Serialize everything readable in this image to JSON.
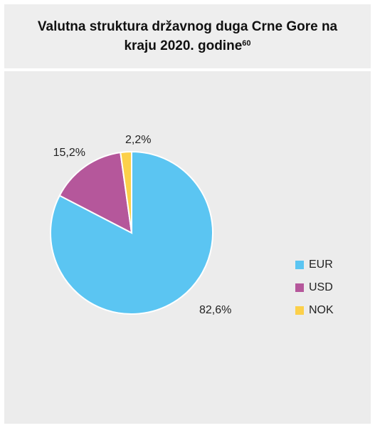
{
  "chart_data": {
    "type": "pie",
    "title": "Valutna struktura državnog duga Crne Gore na kraju 2020. godine",
    "title_note": "60",
    "categories": [
      "EUR",
      "USD",
      "NOK"
    ],
    "values": [
      82.6,
      15.2,
      2.2
    ],
    "value_labels": [
      "82,6%",
      "15,2%",
      "2,2%"
    ],
    "colors": [
      "#5bc5f2",
      "#b5579b",
      "#fcd04a"
    ],
    "legend": "right"
  }
}
